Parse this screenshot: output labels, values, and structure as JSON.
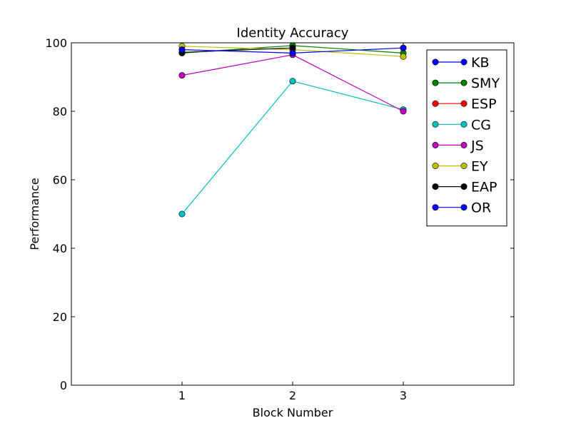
{
  "chart_data": {
    "type": "line",
    "title": "Identity Accuracy",
    "xlabel": "Block Number",
    "ylabel": "Performance",
    "x": [
      1,
      2,
      3
    ],
    "xlim": [
      0,
      4
    ],
    "ylim": [
      0,
      100
    ],
    "xticks": [
      1,
      2,
      3
    ],
    "yticks": [
      0,
      20,
      40,
      60,
      80,
      100
    ],
    "grid": false,
    "legend_position": "top-right",
    "series": [
      {
        "name": "KB",
        "color": "#0000ff",
        "values": [
          null,
          null,
          98.5
        ]
      },
      {
        "name": "SMY",
        "color": "#008000",
        "values": [
          97.0,
          99.2,
          97.0
        ]
      },
      {
        "name": "ESP",
        "color": "#ff0000",
        "values": [
          null,
          null,
          null
        ]
      },
      {
        "name": "CG",
        "color": "#00bfbf",
        "values": [
          50.0,
          88.8,
          80.5
        ]
      },
      {
        "name": "JS",
        "color": "#bf00bf",
        "values": [
          90.5,
          96.5,
          80.0
        ]
      },
      {
        "name": "EY",
        "color": "#bfbf00",
        "values": [
          99.0,
          98.0,
          96.0
        ]
      },
      {
        "name": "EAP",
        "color": "#000000",
        "values": [
          97.2,
          98.5,
          null
        ]
      },
      {
        "name": "OR",
        "color": "#0000ff",
        "values": [
          98.0,
          97.0,
          98.5
        ]
      }
    ]
  }
}
